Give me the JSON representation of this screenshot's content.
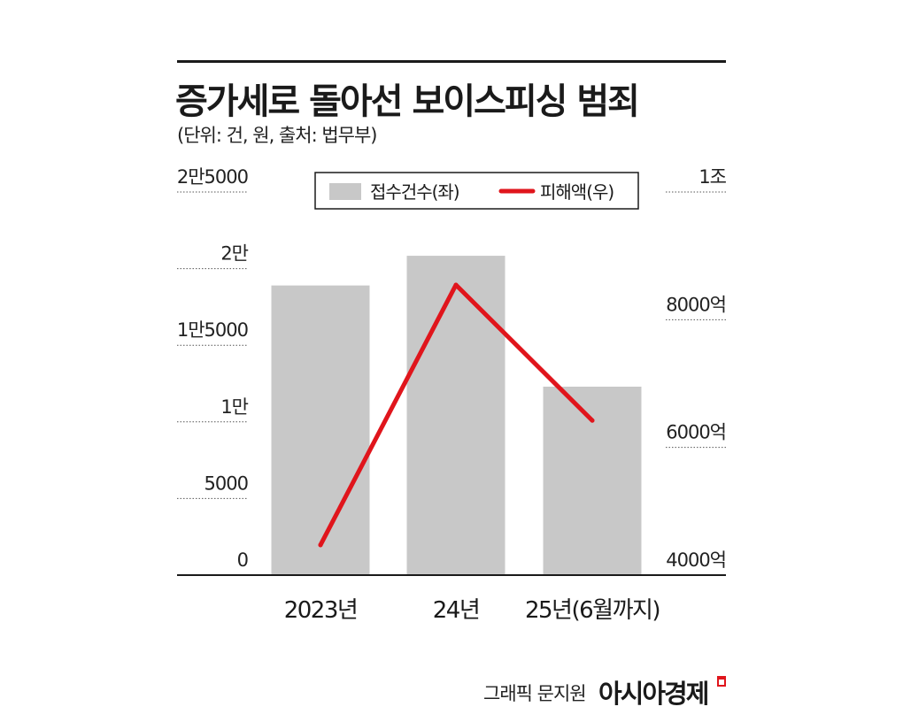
{
  "title": "증가세로 돌아선 보이스피싱 범죄",
  "subtitle": "(단위: 건, 원, 출처: 법무부)",
  "credit": "그래픽 문지원",
  "brand": "아시아경제",
  "chart_data": {
    "type": "bar",
    "categories": [
      "2023년",
      "24년",
      "25년(6월까지)"
    ],
    "series": [
      {
        "name": "접수건수(좌)",
        "kind": "bar",
        "axis": "left",
        "color": "#c8c8c8",
        "values": [
          18902,
          20839,
          12297
        ]
      },
      {
        "name": "피해액(우)",
        "kind": "line",
        "axis": "right",
        "color": "#e0151c",
        "values": [
          4472,
          8545,
          6421
        ]
      }
    ],
    "left_axis": {
      "range": [
        0,
        25000
      ],
      "ticks": [
        0,
        5000,
        10000,
        15000,
        20000,
        25000
      ],
      "tick_labels": [
        "0",
        "5000",
        "1만",
        "1만5000",
        "2만",
        "2만5000"
      ]
    },
    "right_axis": {
      "range": [
        4000,
        10000
      ],
      "ticks": [
        4000,
        6000,
        8000,
        10000
      ],
      "tick_labels": [
        "4000억",
        "6000억",
        "8000억",
        "1조"
      ]
    },
    "legend": "top-center",
    "grid": "dotted tick lines at axis labels"
  }
}
